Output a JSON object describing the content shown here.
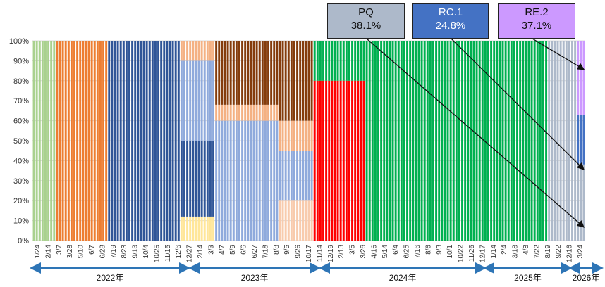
{
  "chart_data": {
    "type": "bar",
    "stacked": true,
    "percent_axis": true,
    "y_ticks": [
      "0%",
      "10%",
      "20%",
      "30%",
      "40%",
      "50%",
      "60%",
      "70%",
      "80%",
      "90%",
      "100%"
    ],
    "ylim": [
      0,
      100
    ],
    "grid": true,
    "x_tick_labels": [
      "1/24",
      "2/14",
      "3/7",
      "3/28",
      "5/10",
      "6/7",
      "6/28",
      "7/19",
      "8/23",
      "9/13",
      "10/4",
      "10/25",
      "11/15",
      "12/6",
      "12/27",
      "2/14",
      "3/3",
      "4/7",
      "5/9",
      "6/6",
      "6/27",
      "7/18",
      "8/8",
      "9/5",
      "9/26",
      "10/17",
      "11/14",
      "12/19",
      "2/13",
      "3/5",
      "3/26",
      "4/16",
      "5/14",
      "6/4",
      "6/25",
      "7/16",
      "8/6",
      "9/3",
      "10/1",
      "10/22",
      "11/26",
      "12/17",
      "1/14",
      "2/4",
      "3/18",
      "4/8",
      "7/22",
      "8/19",
      "9/22",
      "12/16",
      "3/24"
    ],
    "years": [
      "2022年",
      "2023年",
      "2024年",
      "2025年",
      "2026年"
    ],
    "callouts": [
      {
        "name": "PQ",
        "value": "38.1%",
        "color": "#adb9ca"
      },
      {
        "name": "RC.1",
        "value": "24.8%",
        "color": "#4472c4"
      },
      {
        "name": "RE.2",
        "value": "37.1%",
        "color": "#cc99ff"
      }
    ],
    "phases": [
      {
        "bars": 8,
        "stack": [
          [
            "#a9d18e",
            100
          ]
        ]
      },
      {
        "bars": 18,
        "stack": [
          [
            "#ed7d31",
            100
          ]
        ]
      },
      {
        "bars": 25,
        "stack": [
          [
            "#2f5597",
            100
          ]
        ]
      },
      {
        "bars": 12,
        "stack": [
          [
            "#ffe699",
            12
          ],
          [
            "#2f5597",
            38
          ],
          [
            "#8faadc",
            40
          ],
          [
            "#f4b183",
            10
          ]
        ]
      },
      {
        "bars": 22,
        "stack": [
          [
            "#8faadc",
            60
          ],
          [
            "#f4b183",
            8
          ],
          [
            "#843c0c",
            32
          ]
        ]
      },
      {
        "bars": 12,
        "stack": [
          [
            "#f8cbad",
            20
          ],
          [
            "#8faadc",
            25
          ],
          [
            "#f4b183",
            15
          ],
          [
            "#843c0c",
            40
          ]
        ]
      },
      {
        "bars": 18,
        "stack": [
          [
            "#ff0000",
            80
          ],
          [
            "#00b050",
            20
          ]
        ]
      },
      {
        "bars": 38,
        "stack": [
          [
            "#00b050",
            100
          ]
        ]
      },
      {
        "bars": 25,
        "stack": [
          [
            "#00b050",
            100
          ]
        ]
      },
      {
        "bars": 10,
        "stack": [
          [
            "#adb9ca",
            100
          ]
        ]
      },
      {
        "bars": 3,
        "stack": [
          [
            "#adb9ca",
            38.1
          ],
          [
            "#4472c4",
            24.8
          ],
          [
            "#cc99ff",
            37.1
          ]
        ]
      }
    ]
  }
}
